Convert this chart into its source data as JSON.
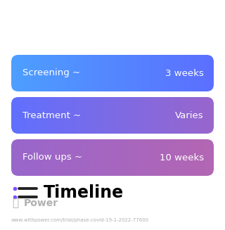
{
  "title": "Timeline",
  "title_icon_color": "#7c4dff",
  "background_color": "#ffffff",
  "rows": [
    {
      "label": "Screening ~",
      "value": "3 weeks",
      "gradient_left": "#4d9fff",
      "gradient_right": "#5c6fff"
    },
    {
      "label": "Treatment ~",
      "value": "Varies",
      "gradient_left": "#6070ff",
      "gradient_right": "#9966cc"
    },
    {
      "label": "Follow ups ~",
      "value": "10 weeks",
      "gradient_left": "#9966cc",
      "gradient_right": "#b366b3"
    }
  ],
  "text_color": "#ffffff",
  "label_fontsize": 9.5,
  "value_fontsize": 9.5,
  "title_fontsize": 17,
  "watermark_text": "Power",
  "watermark_color": "#b0b0b0",
  "url_text": "www.withpower.com/trial/phase-covid-19-1-2022-77600",
  "url_color": "#b0b0b0",
  "url_fontsize": 5.0
}
